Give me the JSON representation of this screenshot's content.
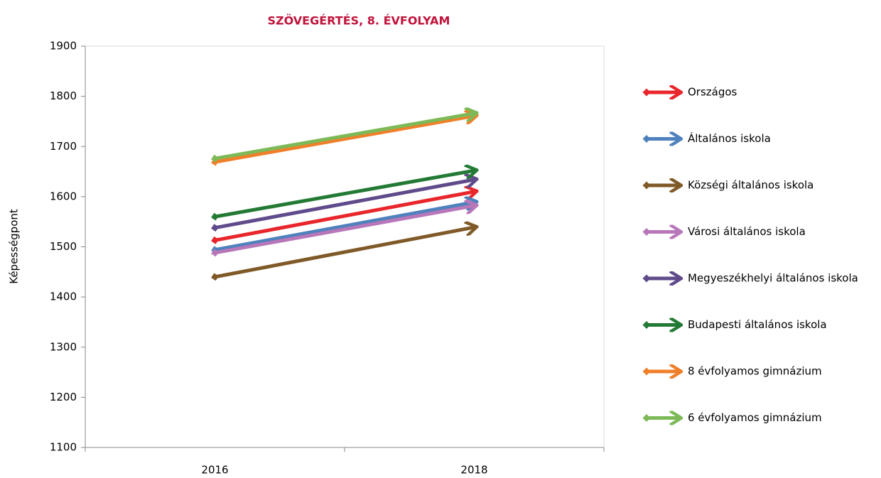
{
  "chart_data": {
    "type": "line",
    "title": "SZÖVEGÉRTÉS, 8. ÉVFOLYAM",
    "y_label": "Képességpont",
    "categories": [
      "2016",
      "2018"
    ],
    "series": [
      {
        "name": "Országos",
        "color": "#e8262b",
        "values": [
          1513,
          1610
        ]
      },
      {
        "name": "Általános iskola",
        "color": "#4f81bd",
        "values": [
          1494,
          1589
        ]
      },
      {
        "name": "Községi általános iskola",
        "color": "#7f5a28",
        "values": [
          1440,
          1539
        ]
      },
      {
        "name": "Városi általános iskola",
        "color": "#b877b9",
        "values": [
          1488,
          1582
        ]
      },
      {
        "name": "Megyeszékhelyi általános iskola",
        "color": "#5f4b8b",
        "values": [
          1538,
          1634
        ]
      },
      {
        "name": "Budapesti általános iskola",
        "color": "#237a35",
        "values": [
          1560,
          1652
        ]
      },
      {
        "name": "8 évfolyamos gimnázium",
        "color": "#f07f2a",
        "values": [
          1669,
          1761
        ]
      },
      {
        "name": "6 évfolyamos gimnázium",
        "color": "#7dba57",
        "values": [
          1676,
          1766
        ]
      }
    ],
    "ylim": [
      1100,
      1900
    ],
    "yticks": [
      1100,
      1200,
      1300,
      1400,
      1500,
      1600,
      1700,
      1800,
      1900
    ],
    "legend": "right"
  }
}
